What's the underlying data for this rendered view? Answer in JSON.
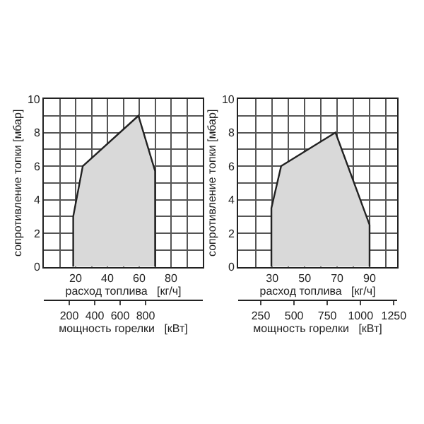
{
  "chart_data": [
    {
      "type": "area",
      "xlabel": "расход топлива   [кг/ч]",
      "x2label": "мощность горелки   [кВт]",
      "ylabel": "сопротивление топки [мбар]",
      "xlim": [
        0,
        100
      ],
      "xticks": [
        {
          "value": 10,
          "label": null
        },
        20,
        {
          "value": 30,
          "label": null
        },
        40,
        {
          "value": 50,
          "label": null
        },
        60,
        {
          "value": 70,
          "label": null
        },
        80,
        {
          "value": 90,
          "label": null
        }
      ],
      "x2lim": [
        0,
        1250
      ],
      "x2ticks": [
        200,
        400,
        600,
        800
      ],
      "ylim": [
        0,
        10
      ],
      "yticks": [
        0,
        {
          "value": 1,
          "label": null
        },
        2,
        {
          "value": 3,
          "label": null
        },
        4,
        {
          "value": 5,
          "label": null
        },
        6,
        {
          "value": 7,
          "label": null
        },
        8,
        {
          "value": 9,
          "label": null
        },
        10
      ],
      "grid": true,
      "series": [
        {
          "color": "#d9d9d9",
          "x": [
            18.5,
            18.5,
            24.5,
            59.5,
            70,
            70
          ],
          "values": [
            0,
            3,
            6,
            9,
            5.7,
            0
          ]
        }
      ]
    },
    {
      "type": "area",
      "xlabel": "расход топлива   [кг/ч]",
      "x2label": "мощность горелки   [кВт]",
      "ylabel": "сопротивление топки [мбар]",
      "xlim": [
        9,
        107
      ],
      "xticks": [
        {
          "value": 20,
          "label": null
        },
        30,
        {
          "value": 40,
          "label": null
        },
        50,
        {
          "value": 60,
          "label": null
        },
        70,
        {
          "value": 80,
          "label": null
        },
        90,
        {
          "value": 100,
          "label": null
        }
      ],
      "x2lim": [
        80,
        1275
      ],
      "x2ticks": [
        250,
        500,
        750,
        1000,
        1250
      ],
      "ylim": [
        0,
        10
      ],
      "yticks": [
        0,
        {
          "value": 1,
          "label": null
        },
        2,
        {
          "value": 3,
          "label": null
        },
        4,
        {
          "value": 5,
          "label": null
        },
        6,
        {
          "value": 7,
          "label": null
        },
        8,
        {
          "value": 9,
          "label": null
        },
        10
      ],
      "grid": true,
      "series": [
        {
          "color": "#d9d9d9",
          "x": [
            29.5,
            29.5,
            35.5,
            69,
            90,
            90
          ],
          "values": [
            0,
            3.5,
            6,
            8,
            2.5,
            0
          ]
        }
      ]
    }
  ]
}
